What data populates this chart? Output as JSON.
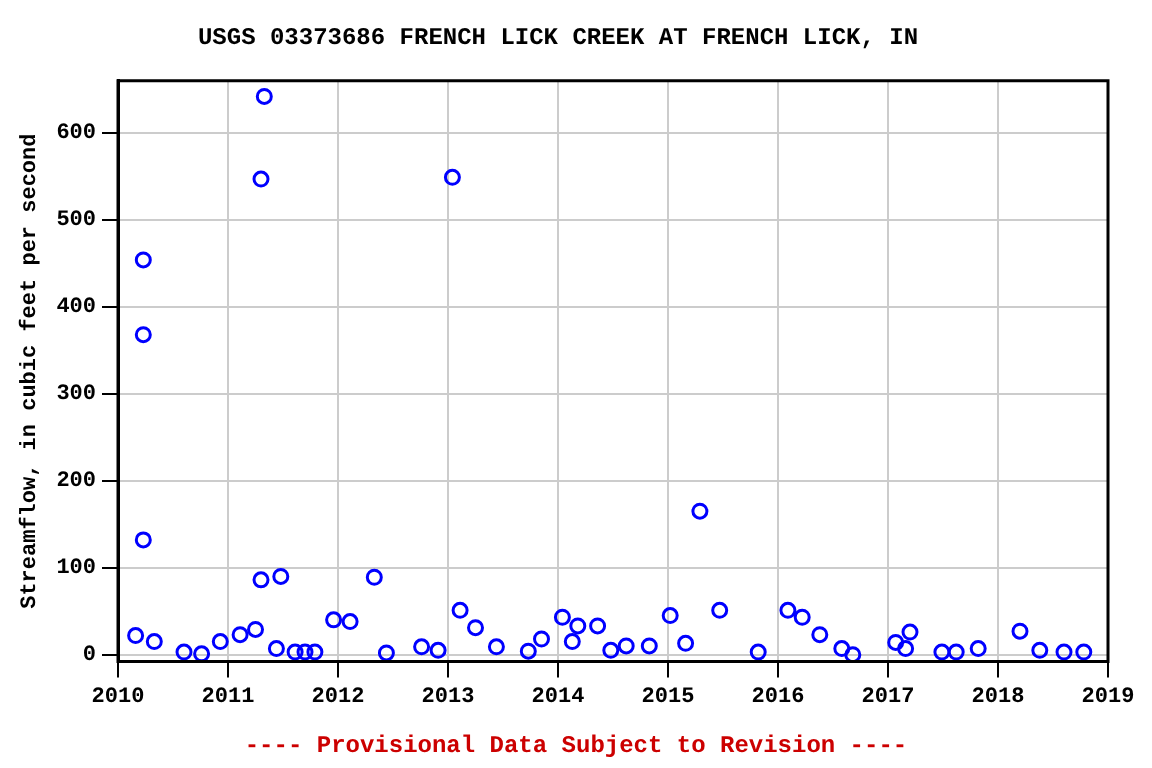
{
  "chart_data": {
    "type": "scatter",
    "title": "USGS 03373686 FRENCH LICK CREEK AT FRENCH LICK, IN",
    "ylabel": "Streamflow, in cubic feet per second",
    "annotations": [
      "---- Provisional Data Subject to Revision ----"
    ],
    "x": [
      2010.16,
      2010.23,
      2010.23,
      2010.23,
      2010.33,
      2010.6,
      2010.76,
      2010.93,
      2011.11,
      2011.25,
      2011.3,
      2011.3,
      2011.33,
      2011.44,
      2011.48,
      2011.61,
      2011.7,
      2011.79,
      2011.96,
      2012.11,
      2012.33,
      2012.44,
      2012.76,
      2012.91,
      2013.04,
      2013.11,
      2013.25,
      2013.44,
      2013.73,
      2013.85,
      2014.04,
      2014.13,
      2014.18,
      2014.36,
      2014.48,
      2014.62,
      2014.83,
      2015.02,
      2015.16,
      2015.29,
      2015.47,
      2015.82,
      2016.09,
      2016.22,
      2016.38,
      2016.58,
      2016.68,
      2017.07,
      2017.16,
      2017.2,
      2017.49,
      2017.62,
      2017.82,
      2018.2,
      2018.38,
      2018.6,
      2018.78
    ],
    "values": [
      22,
      454,
      368,
      132,
      15,
      3,
      1,
      15,
      23,
      29,
      86,
      547,
      642,
      7,
      90,
      3,
      3,
      3,
      40,
      38,
      89,
      2,
      9,
      5,
      549,
      51,
      31,
      9,
      4,
      18,
      43,
      15,
      33,
      33,
      5,
      10,
      10,
      45,
      13,
      165,
      51,
      3,
      51,
      43,
      23,
      7,
      0,
      14,
      7,
      26,
      3,
      3,
      7,
      27,
      5,
      3,
      3
    ],
    "color": "#0000ff",
    "marker": "circle",
    "grid": true,
    "xlim": [
      2010,
      2019
    ],
    "xticks": [
      2010,
      2011,
      2012,
      2013,
      2014,
      2015,
      2016,
      2017,
      2018,
      2019
    ],
    "ylim": [
      -8,
      660
    ],
    "yticks": [
      0,
      100,
      200,
      300,
      400,
      500,
      600
    ]
  }
}
